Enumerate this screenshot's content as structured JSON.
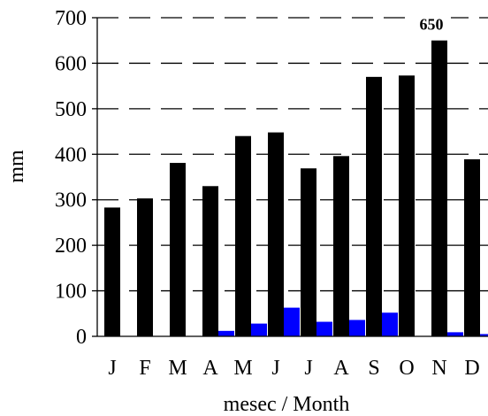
{
  "chart_data": {
    "type": "bar",
    "categories": [
      "J",
      "F",
      "M",
      "A",
      "M",
      "J",
      "J",
      "A",
      "S",
      "O",
      "N",
      "D"
    ],
    "series": [
      {
        "values": [
          283,
          303,
          381,
          330,
          440,
          448,
          369,
          396,
          570,
          573,
          650,
          389
        ],
        "color": "#000000"
      },
      {
        "values": [
          0,
          0,
          0,
          12,
          28,
          63,
          32,
          36,
          52,
          0,
          9,
          5
        ],
        "color": "#0000ff"
      }
    ],
    "annotations": [
      {
        "category_index": 10,
        "text": "650"
      }
    ],
    "xlabel": "mesec / Month",
    "ylabel": "mm",
    "ylim": [
      0,
      700
    ],
    "yticks": [
      0,
      100,
      200,
      300,
      400,
      500,
      600,
      700
    ],
    "grid": "dashed horizontal"
  }
}
